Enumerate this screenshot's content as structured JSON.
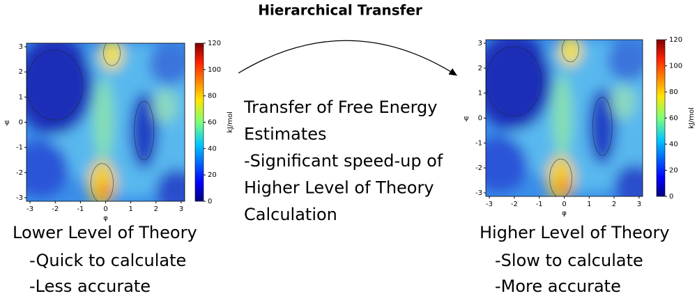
{
  "title": "Hierarchical Transfer",
  "panels": [
    {
      "x_label": "φ",
      "y_label": "ψ",
      "x_ticks": [
        -3,
        -2,
        -1,
        0,
        1,
        2,
        3
      ],
      "y_ticks": [
        3,
        2,
        1,
        0,
        -1,
        -2,
        -3
      ],
      "colorbar_ticks": [
        120,
        100,
        80,
        60,
        40,
        20,
        0
      ],
      "colorbar_label": "kJ/mol",
      "caption": "Lower Level of Theory",
      "notes": [
        "-Quick to calculate",
        "-Less accurate"
      ]
    },
    {
      "x_label": "φ",
      "y_label": "ψ",
      "x_ticks": [
        -3,
        -2,
        -1,
        0,
        1,
        2,
        3
      ],
      "y_ticks": [
        3,
        2,
        1,
        0,
        -1,
        -2,
        -3
      ],
      "colorbar_ticks": [
        120,
        100,
        80,
        60,
        40,
        20,
        0
      ],
      "colorbar_label": "kJ/mol",
      "caption": "Higher Level of Theory",
      "notes": [
        "-Slow to calculate",
        "-More accurate"
      ]
    }
  ],
  "transfer": {
    "lines": [
      "Transfer of Free Energy",
      "Estimates",
      "-Significant speed-up of",
      "Higher Level of Theory",
      "Calculation"
    ]
  }
}
